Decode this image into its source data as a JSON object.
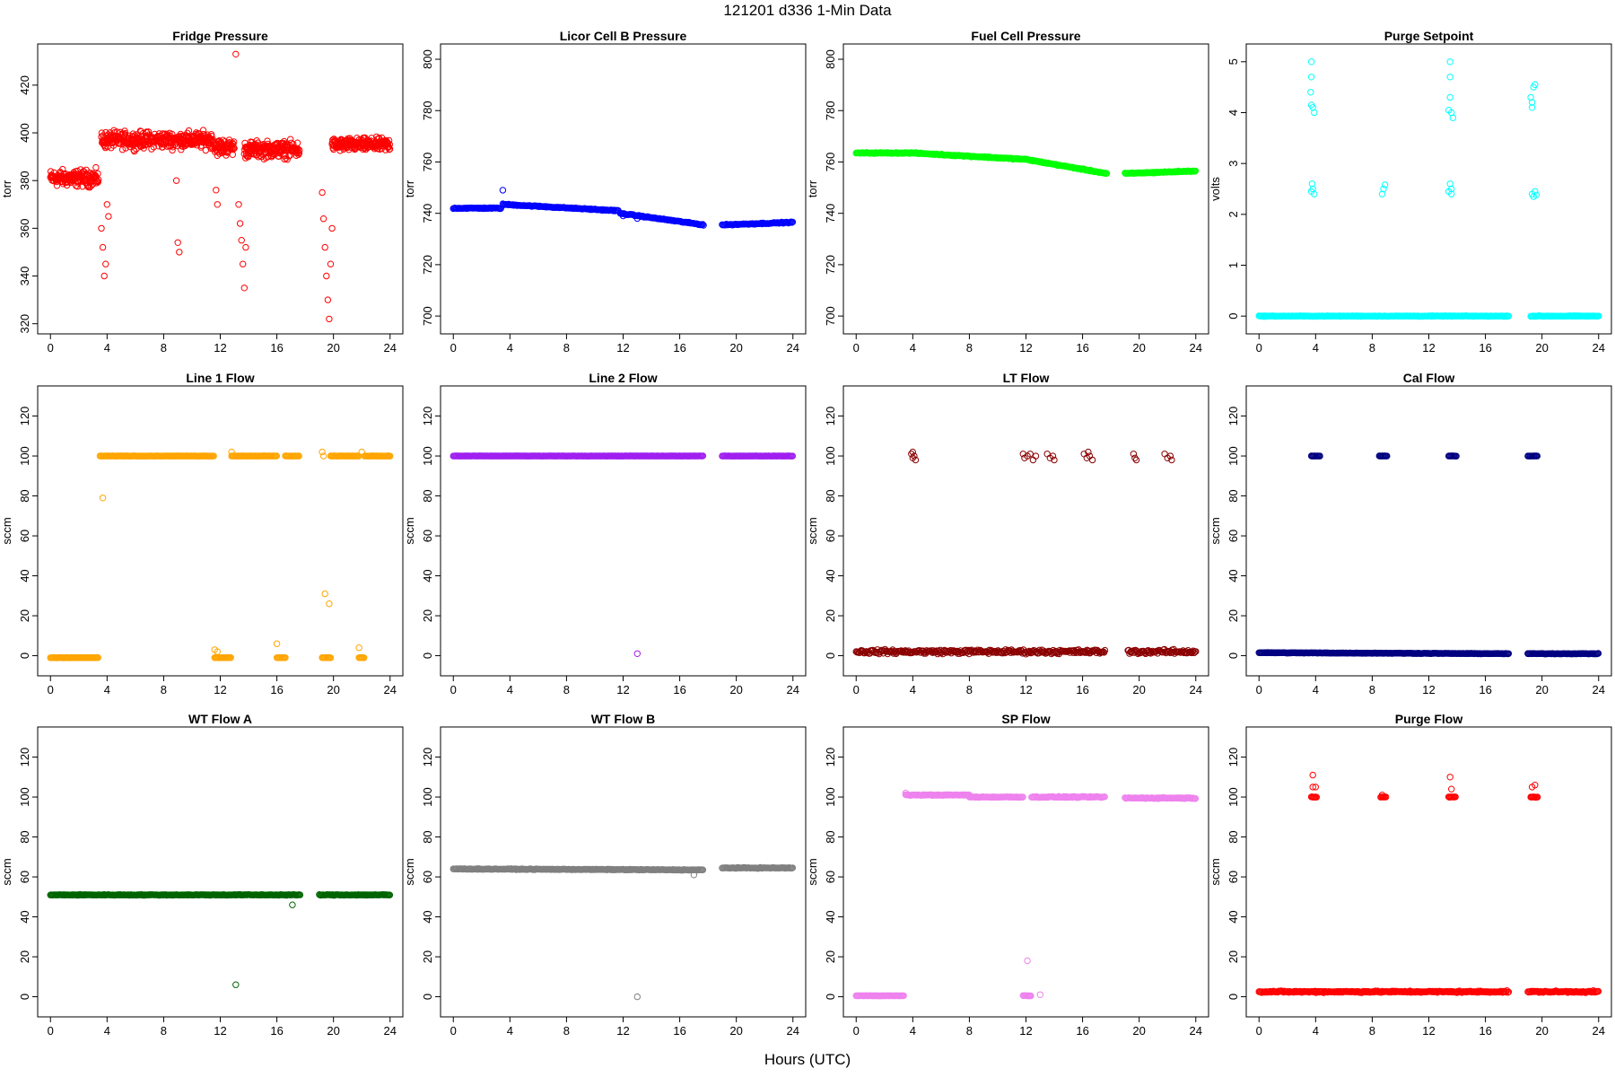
{
  "figure": {
    "title": "121201    d336    1-Min Data",
    "xlabel": "Hours (UTC)"
  },
  "chart_data": [
    {
      "type": "scatter",
      "title": "Fridge Pressure",
      "ylabel": "torr",
      "xlim": [
        0,
        24
      ],
      "ylim": [
        320,
        433
      ],
      "yticks": [
        320,
        340,
        360,
        380,
        400,
        420
      ],
      "xticks": [
        0,
        4,
        8,
        12,
        16,
        20,
        24
      ],
      "color": "#ff0000",
      "segments": [
        {
          "x0": 0,
          "x1": 3.4,
          "y": 381,
          "noise": 5
        },
        {
          "x0": 3.6,
          "x1": 11.5,
          "y": 397,
          "noise": 5
        },
        {
          "x0": 11.6,
          "x1": 13.0,
          "y": 394,
          "noise": 5
        },
        {
          "x0": 13.7,
          "x1": 17.6,
          "y": 393,
          "noise": 5
        },
        {
          "x0": 19.9,
          "x1": 24,
          "y": 395,
          "noise": 4
        }
      ],
      "points": [
        [
          3.6,
          360
        ],
        [
          3.7,
          352
        ],
        [
          3.8,
          340
        ],
        [
          3.9,
          345
        ],
        [
          4.0,
          370
        ],
        [
          4.1,
          365
        ],
        [
          8.9,
          380
        ],
        [
          9.0,
          354
        ],
        [
          9.1,
          350
        ],
        [
          11.7,
          376
        ],
        [
          11.8,
          370
        ],
        [
          13.1,
          433
        ],
        [
          13.3,
          370
        ],
        [
          13.4,
          362
        ],
        [
          13.5,
          355
        ],
        [
          13.6,
          345
        ],
        [
          13.7,
          335
        ],
        [
          13.8,
          352
        ],
        [
          19.2,
          375
        ],
        [
          19.3,
          364
        ],
        [
          19.4,
          352
        ],
        [
          19.5,
          340
        ],
        [
          19.6,
          330
        ],
        [
          19.7,
          322
        ],
        [
          19.8,
          345
        ],
        [
          19.9,
          360
        ]
      ]
    },
    {
      "type": "scatter",
      "title": "Licor Cell B Pressure",
      "ylabel": "torr",
      "xlim": [
        0,
        24
      ],
      "ylim": [
        697,
        802
      ],
      "yticks": [
        700,
        720,
        740,
        760,
        780,
        800
      ],
      "xticks": [
        0,
        4,
        8,
        12,
        16,
        20,
        24
      ],
      "color": "#0000ff",
      "segments": [
        {
          "x0": 0,
          "x1": 3.4,
          "y": 742,
          "y1": 742,
          "noise": 0.3
        },
        {
          "x0": 3.5,
          "x1": 11.7,
          "y": 743.5,
          "y1": 741,
          "noise": 0.3
        },
        {
          "x0": 11.8,
          "x1": 17.7,
          "y": 740,
          "y1": 735.5,
          "noise": 0.3
        },
        {
          "x0": 19.0,
          "x1": 24,
          "y": 735.5,
          "y1": 736.5,
          "noise": 0.3
        }
      ],
      "points": [
        [
          3.5,
          749
        ],
        [
          13.0,
          738
        ],
        [
          12.0,
          739
        ]
      ]
    },
    {
      "type": "scatter",
      "title": "Fuel Cell Pressure",
      "ylabel": "torr",
      "xlim": [
        0,
        24
      ],
      "ylim": [
        697,
        802
      ],
      "yticks": [
        700,
        720,
        740,
        760,
        780,
        800
      ],
      "xticks": [
        0,
        4,
        8,
        12,
        16,
        20,
        24
      ],
      "color": "#00ff00",
      "segments": [
        {
          "x0": 0,
          "x1": 4,
          "y": 763.5,
          "y1": 763.5,
          "noise": 0.3
        },
        {
          "x0": 4,
          "x1": 12,
          "y": 763.5,
          "y1": 761,
          "noise": 0.3
        },
        {
          "x0": 12,
          "x1": 17.7,
          "y": 761,
          "y1": 755.5,
          "noise": 0.3
        },
        {
          "x0": 19.0,
          "x1": 24,
          "y": 755.5,
          "y1": 756.5,
          "noise": 0.3
        }
      ],
      "points": []
    },
    {
      "type": "scatter",
      "title": "Purge Setpoint",
      "ylabel": "volts",
      "xlim": [
        0,
        24
      ],
      "ylim": [
        -0.15,
        5.15
      ],
      "yticks": [
        0,
        1,
        2,
        3,
        4,
        5
      ],
      "xticks": [
        0,
        4,
        8,
        12,
        16,
        20,
        24
      ],
      "color": "#00ffff",
      "segments": [
        {
          "x0": 0,
          "x1": 17.7,
          "y": 0,
          "noise": 0.01
        },
        {
          "x0": 19.2,
          "x1": 24,
          "y": 0,
          "noise": 0.01
        }
      ],
      "points": [
        [
          3.7,
          5.0
        ],
        [
          3.7,
          4.7
        ],
        [
          3.65,
          4.4
        ],
        [
          3.8,
          4.1
        ],
        [
          3.9,
          4.0
        ],
        [
          3.7,
          4.15
        ],
        [
          3.75,
          2.6
        ],
        [
          3.8,
          2.5
        ],
        [
          3.9,
          2.4
        ],
        [
          3.7,
          2.45
        ],
        [
          8.7,
          2.4
        ],
        [
          8.8,
          2.5
        ],
        [
          8.9,
          2.58
        ],
        [
          13.5,
          5.0
        ],
        [
          13.5,
          4.7
        ],
        [
          13.5,
          4.3
        ],
        [
          13.6,
          4.0
        ],
        [
          13.7,
          3.9
        ],
        [
          13.4,
          4.05
        ],
        [
          13.5,
          2.6
        ],
        [
          13.6,
          2.5
        ],
        [
          13.6,
          2.4
        ],
        [
          13.4,
          2.45
        ],
        [
          19.2,
          4.3
        ],
        [
          19.3,
          4.1
        ],
        [
          19.4,
          4.5
        ],
        [
          19.5,
          4.55
        ],
        [
          19.3,
          4.2
        ],
        [
          19.3,
          2.4
        ],
        [
          19.4,
          2.35
        ],
        [
          19.5,
          2.45
        ],
        [
          19.6,
          2.38
        ]
      ]
    },
    {
      "type": "scatter",
      "title": "Line 1 Flow",
      "ylabel": "sccm",
      "xlim": [
        0,
        24
      ],
      "ylim": [
        -5,
        130
      ],
      "yticks": [
        0,
        20,
        40,
        60,
        80,
        100,
        120
      ],
      "xticks": [
        0,
        4,
        8,
        12,
        16,
        20,
        24
      ],
      "color": "#ffa500",
      "segments": [
        {
          "x0": 0,
          "x1": 3.4,
          "y": -1,
          "noise": 0.1
        },
        {
          "x0": 3.5,
          "x1": 11.6,
          "y": 100,
          "noise": 0.1
        },
        {
          "x0": 12.8,
          "x1": 16.0,
          "y": 100,
          "noise": 0.1
        },
        {
          "x0": 16.6,
          "x1": 17.6,
          "y": 100,
          "noise": 0.1
        },
        {
          "x0": 19.8,
          "x1": 21.8,
          "y": 100,
          "noise": 0.1
        },
        {
          "x0": 22.2,
          "x1": 24,
          "y": 100,
          "noise": 0.1
        },
        {
          "x0": 11.6,
          "x1": 12.8,
          "y": -1,
          "noise": 0.1
        },
        {
          "x0": 16.0,
          "x1": 16.6,
          "y": -1,
          "noise": 0.1
        },
        {
          "x0": 19.2,
          "x1": 19.8,
          "y": -1,
          "noise": 0.1
        },
        {
          "x0": 21.8,
          "x1": 22.2,
          "y": -1,
          "noise": 0.1
        }
      ],
      "points": [
        [
          3.7,
          79
        ],
        [
          11.6,
          3
        ],
        [
          11.8,
          2
        ],
        [
          12.8,
          102
        ],
        [
          16.0,
          6
        ],
        [
          19.2,
          102
        ],
        [
          19.4,
          31
        ],
        [
          19.7,
          26
        ],
        [
          21.8,
          4
        ],
        [
          22.0,
          102
        ],
        [
          19.3,
          100
        ]
      ]
    },
    {
      "type": "scatter",
      "title": "Line 2 Flow",
      "ylabel": "sccm",
      "xlim": [
        0,
        24
      ],
      "ylim": [
        -5,
        130
      ],
      "yticks": [
        0,
        20,
        40,
        60,
        80,
        100,
        120
      ],
      "xticks": [
        0,
        4,
        8,
        12,
        16,
        20,
        24
      ],
      "color": "#a020f0",
      "segments": [
        {
          "x0": 0,
          "x1": 17.7,
          "y": 100,
          "noise": 0.1
        },
        {
          "x0": 19.0,
          "x1": 24,
          "y": 100,
          "noise": 0.1
        }
      ],
      "points": [
        [
          13.0,
          1
        ]
      ]
    },
    {
      "type": "scatter",
      "title": "LT Flow",
      "ylabel": "sccm",
      "xlim": [
        0,
        24
      ],
      "ylim": [
        -5,
        130
      ],
      "yticks": [
        0,
        20,
        40,
        60,
        80,
        100,
        120
      ],
      "xticks": [
        0,
        4,
        8,
        12,
        16,
        20,
        24
      ],
      "color": "#8b0000",
      "segments": [
        {
          "x0": 0,
          "x1": 17.6,
          "y": 2,
          "noise": 1.5
        },
        {
          "x0": 19.2,
          "x1": 24,
          "y": 2,
          "noise": 1.5
        }
      ],
      "points": [
        [
          3.9,
          101
        ],
        [
          4.0,
          99
        ],
        [
          4.1,
          100
        ],
        [
          4.2,
          98
        ],
        [
          4.0,
          102
        ],
        [
          11.8,
          101
        ],
        [
          11.9,
          99
        ],
        [
          12.1,
          100
        ],
        [
          12.3,
          101
        ],
        [
          12.5,
          98
        ],
        [
          12.7,
          100
        ],
        [
          13.5,
          101
        ],
        [
          13.7,
          99
        ],
        [
          13.9,
          100
        ],
        [
          14.0,
          98
        ],
        [
          16.1,
          101
        ],
        [
          16.3,
          99
        ],
        [
          16.5,
          100
        ],
        [
          16.7,
          98
        ],
        [
          16.4,
          102
        ],
        [
          19.6,
          101
        ],
        [
          19.7,
          99
        ],
        [
          19.8,
          98
        ],
        [
          21.8,
          101
        ],
        [
          22.0,
          99
        ],
        [
          22.2,
          100
        ],
        [
          22.3,
          98
        ]
      ]
    },
    {
      "type": "scatter",
      "title": "Cal Flow",
      "ylabel": "sccm",
      "xlim": [
        0,
        24
      ],
      "ylim": [
        -5,
        130
      ],
      "yticks": [
        0,
        20,
        40,
        60,
        80,
        100,
        120
      ],
      "xticks": [
        0,
        4,
        8,
        12,
        16,
        20,
        24
      ],
      "color": "#000080",
      "segments": [
        {
          "x0": 0,
          "x1": 17.7,
          "y": 1.5,
          "y1": 1,
          "noise": 0.2
        },
        {
          "x0": 19.0,
          "x1": 24,
          "y": 1,
          "noise": 0.2
        },
        {
          "x0": 3.7,
          "x1": 4.3,
          "y": 100,
          "noise": 0.1
        },
        {
          "x0": 8.5,
          "x1": 9.1,
          "y": 100,
          "noise": 0.1
        },
        {
          "x0": 13.4,
          "x1": 14.0,
          "y": 100,
          "noise": 0.1
        },
        {
          "x0": 19.0,
          "x1": 19.7,
          "y": 100,
          "noise": 0.1
        }
      ],
      "points": [
        [
          19.0,
          1
        ]
      ]
    },
    {
      "type": "scatter",
      "title": "WT Flow A",
      "ylabel": "sccm",
      "xlim": [
        0,
        24
      ],
      "ylim": [
        -5,
        130
      ],
      "yticks": [
        0,
        20,
        40,
        60,
        80,
        100,
        120
      ],
      "xticks": [
        0,
        4,
        8,
        12,
        16,
        20,
        24
      ],
      "color": "#006400",
      "segments": [
        {
          "x0": 0,
          "x1": 17.7,
          "y": 51,
          "noise": 0.3
        },
        {
          "x0": 19.0,
          "x1": 24,
          "y": 51,
          "noise": 0.3
        }
      ],
      "points": [
        [
          13.1,
          6
        ],
        [
          17.1,
          46
        ]
      ]
    },
    {
      "type": "scatter",
      "title": "WT Flow B",
      "ylabel": "sccm",
      "xlim": [
        0,
        24
      ],
      "ylim": [
        -5,
        130
      ],
      "yticks": [
        0,
        20,
        40,
        60,
        80,
        100,
        120
      ],
      "xticks": [
        0,
        4,
        8,
        12,
        16,
        20,
        24
      ],
      "color": "#808080",
      "segments": [
        {
          "x0": 0,
          "x1": 17.7,
          "y": 64,
          "y1": 63.5,
          "noise": 0.3
        },
        {
          "x0": 19.0,
          "x1": 24,
          "y": 64.5,
          "noise": 0.3
        }
      ],
      "points": [
        [
          13.0,
          0
        ],
        [
          17.0,
          61
        ]
      ]
    },
    {
      "type": "scatter",
      "title": "SP Flow",
      "ylabel": "sccm",
      "xlim": [
        0,
        24
      ],
      "ylim": [
        -5,
        130
      ],
      "yticks": [
        0,
        20,
        40,
        60,
        80,
        100,
        120
      ],
      "xticks": [
        0,
        4,
        8,
        12,
        16,
        20,
        24
      ],
      "color": "#ee82ee",
      "segments": [
        {
          "x0": 0,
          "x1": 3.4,
          "y": 0.5,
          "noise": 0.1
        },
        {
          "x0": 3.5,
          "x1": 8,
          "y": 101,
          "noise": 0.3
        },
        {
          "x0": 8,
          "x1": 11.8,
          "y": 100,
          "noise": 0.3
        },
        {
          "x0": 12.4,
          "x1": 17.6,
          "y": 100,
          "noise": 0.4
        },
        {
          "x0": 19.0,
          "x1": 24,
          "y": 99.5,
          "noise": 0.4
        },
        {
          "x0": 11.8,
          "x1": 12.4,
          "y": 0.5,
          "noise": 0.1
        }
      ],
      "points": [
        [
          12.1,
          18
        ],
        [
          13.0,
          1
        ],
        [
          3.5,
          102
        ]
      ]
    },
    {
      "type": "scatter",
      "title": "Purge Flow",
      "ylabel": "sccm",
      "xlim": [
        0,
        24
      ],
      "ylim": [
        -5,
        130
      ],
      "yticks": [
        0,
        20,
        40,
        60,
        80,
        100,
        120
      ],
      "xticks": [
        0,
        4,
        8,
        12,
        16,
        20,
        24
      ],
      "color": "#ff0000",
      "segments": [
        {
          "x0": 0,
          "x1": 17.7,
          "y": 2.5,
          "noise": 0.6
        },
        {
          "x0": 19.0,
          "x1": 24,
          "y": 2.5,
          "noise": 0.6
        },
        {
          "x0": 3.7,
          "x1": 4.1,
          "y": 100,
          "noise": 0.2
        },
        {
          "x0": 8.6,
          "x1": 9.0,
          "y": 100,
          "noise": 0.2
        },
        {
          "x0": 13.4,
          "x1": 13.9,
          "y": 100,
          "noise": 0.2
        },
        {
          "x0": 19.2,
          "x1": 19.7,
          "y": 100,
          "noise": 0.2
        }
      ],
      "points": [
        [
          3.8,
          111
        ],
        [
          3.8,
          105
        ],
        [
          4.0,
          105
        ],
        [
          13.5,
          110
        ],
        [
          13.6,
          104
        ],
        [
          19.3,
          105
        ],
        [
          19.5,
          106
        ],
        [
          8.7,
          101
        ]
      ]
    }
  ]
}
